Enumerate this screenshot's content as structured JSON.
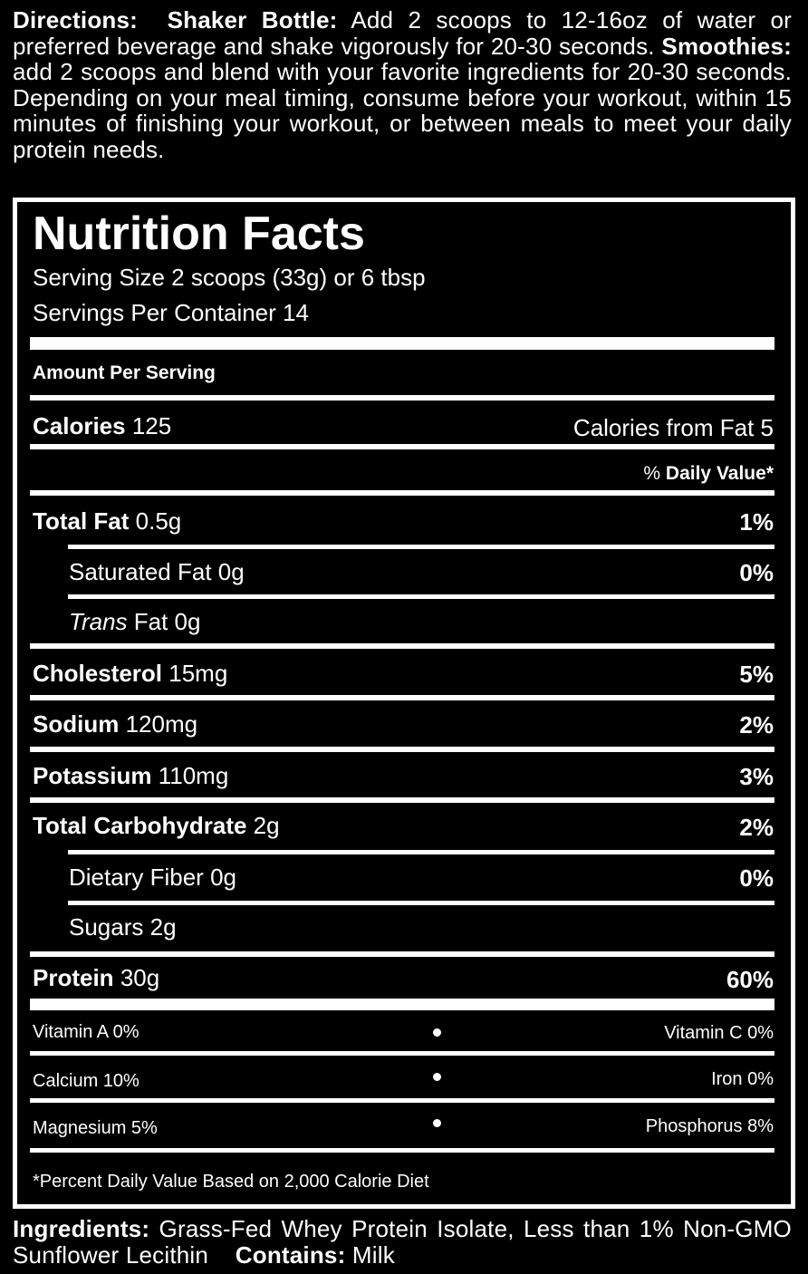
{
  "directions": {
    "label": "Directions:",
    "shaker_label": "Shaker Bottle:",
    "shaker_text": "Add 2 scoops to 12-16oz of water or preferred beverage and shake vigorously for 20-30 seconds.",
    "smoothies_label": "Smoothies:",
    "smoothies_text": "add 2 scoops and blend with your favorite ingredients for 20-30 seconds. Depending on your meal timing, consume before your workout, within 15 minutes of finishing your workout, or between meals to meet your daily protein needs."
  },
  "label": {
    "title": "Nutrition Facts",
    "serving_size": "Serving Size 2 scoops (33g) or 6 tbsp",
    "servings_per_container": "Servings Per Container 14",
    "amount_per_serving": "Amount Per Serving",
    "calories_label": "Calories",
    "calories_value": "125",
    "calories_from_fat": "Calories from Fat 5",
    "dv_header_pct": "%",
    "dv_header": "Daily Value*",
    "nutrients": [
      {
        "name": "Total Fat",
        "amount": "0.5g",
        "dv": "1%"
      },
      {
        "name": "Saturated Fat",
        "amount": "0g",
        "dv": "0%"
      },
      {
        "name": "Trans",
        "suffix": "Fat 0g",
        "dv": ""
      },
      {
        "name": "Cholesterol",
        "amount": "15mg",
        "dv": "5%"
      },
      {
        "name": "Sodium",
        "amount": "120mg",
        "dv": "2%"
      },
      {
        "name": "Potassium",
        "amount": "110mg",
        "dv": "3%"
      },
      {
        "name": "Total Carbohydrate",
        "amount": "2g",
        "dv": "2%"
      },
      {
        "name": "Dietary Fiber",
        "amount": "0g",
        "dv": "0%"
      },
      {
        "name": "Sugars",
        "amount": "2g",
        "dv": ""
      },
      {
        "name": "Protein",
        "amount": "30g",
        "dv": "60%"
      }
    ],
    "vitamins": [
      {
        "left": "Vitamin A 0%",
        "right": "Vitamin C 0%"
      },
      {
        "left": "Calcium 10%",
        "right": "Iron 0%"
      },
      {
        "left": "Magnesium 5%",
        "right": "Phosphorus 8%"
      }
    ],
    "footnote": "*Percent Daily Value Based on 2,000 Calorie Diet"
  },
  "ingredients": {
    "label": "Ingredients:",
    "text": "Grass-Fed Whey Protein Isolate, Less than 1% Non-GMO Sunflower Lecithin",
    "contains_label": "Contains:",
    "contains_text": "Milk"
  }
}
